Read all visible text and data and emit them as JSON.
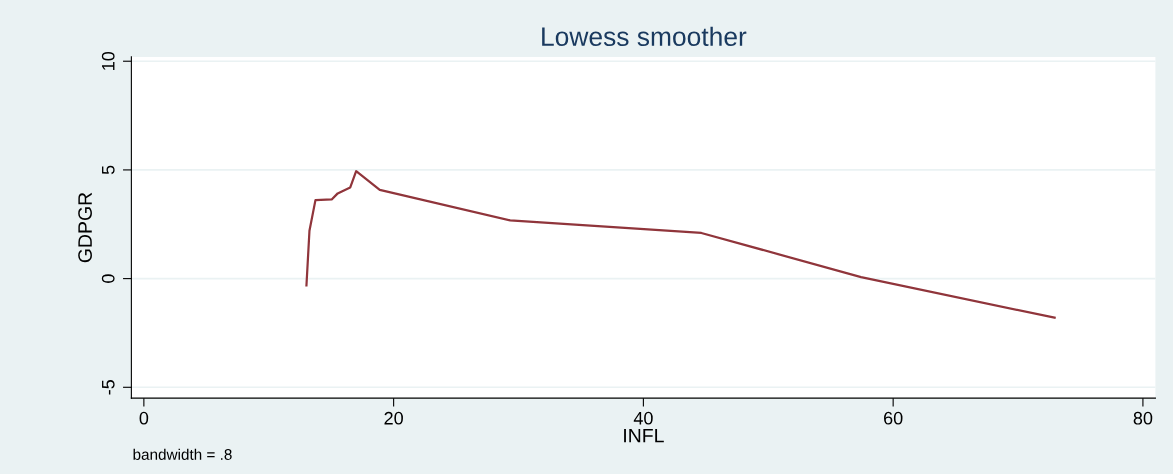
{
  "chart_data": {
    "type": "line",
    "title": "Lowess smoother",
    "xlabel": "INFL",
    "ylabel": "GDPGR",
    "annotations": [
      "bandwidth = .8"
    ],
    "x": [
      13.02,
      13.26,
      13.74,
      15.04,
      15.52,
      16.52,
      17.0,
      18.89,
      29.33,
      44.64,
      57.43,
      72.93
    ],
    "series": [
      {
        "color": "#90353b",
        "values": [
          -0.31,
          2.2,
          3.61,
          3.64,
          3.92,
          4.19,
          4.94,
          4.08,
          2.68,
          2.1,
          0.07,
          -1.8
        ]
      }
    ],
    "xlim": [
      -1,
      81
    ],
    "ylim": [
      -5.5,
      10.2
    ],
    "xticks": [
      0,
      20,
      40,
      60,
      80
    ],
    "yticks": [
      -5,
      0,
      5,
      10
    ],
    "grid": "y",
    "legend": false,
    "marker": "none",
    "line_style": "solid"
  }
}
